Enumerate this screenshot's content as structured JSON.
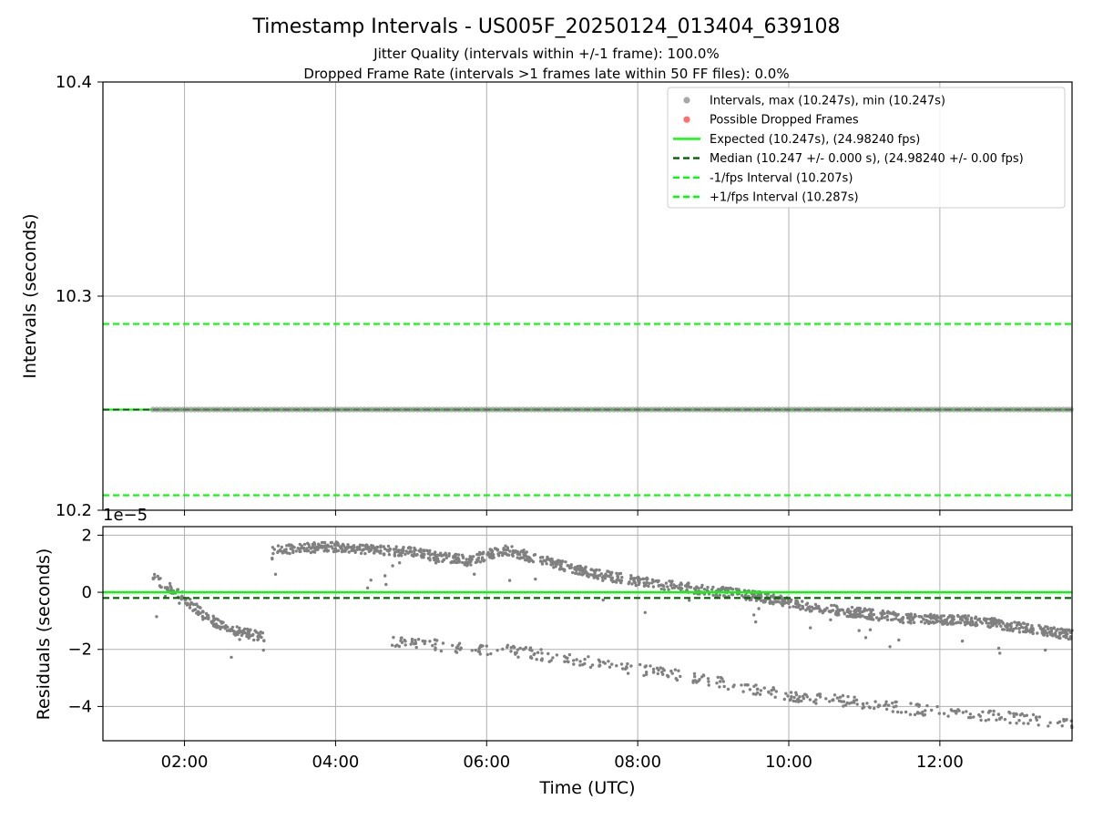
{
  "figure": {
    "title": "Timestamp Intervals - US005F_20250124_013404_639108",
    "subtitle_1": "Jitter Quality (intervals within +/-1 frame): 100.0%",
    "subtitle_2": "Dropped Frame Rate (intervals >1 frames late within 50 FF files): 0.0%"
  },
  "colors": {
    "intervals": "#808080",
    "dropped": "#ff0000",
    "expected": "#00ff00",
    "median": "#006400",
    "bound": "#00ff00",
    "grid": "#b0b0b0"
  },
  "chart_data": [
    {
      "type": "scatter",
      "panel": "intervals",
      "ylabel": "Intervals (seconds)",
      "xlabel": "",
      "ylim": [
        10.2,
        10.4
      ],
      "yticks": [
        "10.2",
        "10.3",
        "10.4"
      ],
      "x_range_hours": [
        0.92,
        13.75
      ],
      "xticks": [
        "02:00",
        "04:00",
        "06:00",
        "08:00",
        "10:00",
        "12:00"
      ],
      "grid": true,
      "legend_placement": "upper right",
      "legend": [
        {
          "label": "Intervals, max (10.247s), min (10.247s)",
          "kind": "marker",
          "color": "#999999"
        },
        {
          "label": "Possible Dropped Frames",
          "kind": "marker",
          "color": "#ff5555"
        },
        {
          "label": "Expected (10.247s), (24.98240 fps)",
          "kind": "solid",
          "color": "#00ff00"
        },
        {
          "label": "Median (10.247 +/- 0.000 s), (24.98240 +/- 0.00 fps)",
          "kind": "dashed",
          "color": "#006400"
        },
        {
          "label": "-1/fps Interval (10.207s)",
          "kind": "dashed",
          "color": "#00ff00"
        },
        {
          "label": "+1/fps Interval (10.287s)",
          "kind": "dashed",
          "color": "#00ff00"
        }
      ],
      "lines": {
        "expected": 10.247,
        "median": 10.247,
        "lower": 10.207,
        "upper": 10.287
      },
      "series": [
        {
          "x_start": "01:35",
          "x_end": "13:45",
          "y": 10.247
        }
      ]
    },
    {
      "type": "scatter",
      "panel": "residuals",
      "ylabel": "Residuals (seconds)",
      "xlabel": "Time (UTC)",
      "offset_text": "1e−5",
      "ylim": [
        -5.2,
        2.3
      ],
      "yticks": [
        "−4",
        "−2",
        "0",
        "2"
      ],
      "x_range_hours": [
        0.92,
        13.75
      ],
      "xticks": [
        "02:00",
        "04:00",
        "06:00",
        "08:00",
        "10:00",
        "12:00"
      ],
      "grid": true,
      "lines": {
        "expected": 0.0,
        "median": -0.2
      },
      "main_trend": [
        {
          "x": "01:35",
          "y": 0.5
        },
        {
          "x": "01:55",
          "y": 0.0
        },
        {
          "x": "02:15",
          "y": -0.8
        },
        {
          "x": "02:35",
          "y": -1.3
        },
        {
          "x": "03:05",
          "y": -1.6
        },
        {
          "x": "03:10",
          "y": 1.5
        },
        {
          "x": "04:00",
          "y": 1.6
        },
        {
          "x": "05:00",
          "y": 1.4
        },
        {
          "x": "05:45",
          "y": 1.1
        },
        {
          "x": "06:15",
          "y": 1.5
        },
        {
          "x": "06:45",
          "y": 1.1
        },
        {
          "x": "07:30",
          "y": 0.6
        },
        {
          "x": "08:30",
          "y": 0.2
        },
        {
          "x": "09:30",
          "y": -0.1
        },
        {
          "x": "10:30",
          "y": -0.6
        },
        {
          "x": "11:30",
          "y": -0.9
        },
        {
          "x": "12:30",
          "y": -1.0
        },
        {
          "x": "13:45",
          "y": -1.5
        }
      ],
      "lower_band": [
        {
          "x": "04:45",
          "y": -1.7
        },
        {
          "x": "05:30",
          "y": -1.9
        },
        {
          "x": "06:00",
          "y": -2.0
        },
        {
          "x": "06:30",
          "y": -2.1
        },
        {
          "x": "07:00",
          "y": -2.3
        },
        {
          "x": "08:00",
          "y": -2.7
        },
        {
          "x": "09:00",
          "y": -3.1
        },
        {
          "x": "10:00",
          "y": -3.6
        },
        {
          "x": "11:00",
          "y": -3.9
        },
        {
          "x": "12:00",
          "y": -4.2
        },
        {
          "x": "13:00",
          "y": -4.4
        },
        {
          "x": "13:45",
          "y": -4.6
        }
      ]
    }
  ]
}
